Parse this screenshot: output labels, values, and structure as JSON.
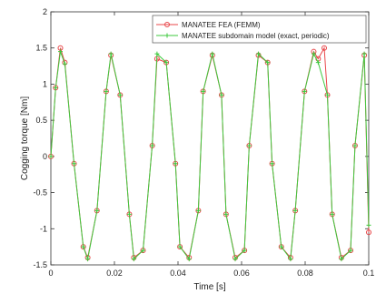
{
  "chart_data": {
    "type": "line",
    "xlabel": "Time [s]",
    "ylabel": "Cogging torque [Nm]",
    "xlim": [
      0,
      0.1
    ],
    "ylim": [
      -1.5,
      2
    ],
    "xticks": [
      "0",
      "0.02",
      "0.04",
      "0.06",
      "0.08",
      "0.1"
    ],
    "yticks": [
      "-1.5",
      "-1",
      "-0.5",
      "0",
      "0.5",
      "1",
      "1.5",
      "2"
    ],
    "grid": false,
    "legend_position": "top-right",
    "series": [
      {
        "name": "MANATEE FEA (FEMM)",
        "color": "#e8474a",
        "marker": "circle",
        "x": [
          0.0,
          0.0015,
          0.003,
          0.0044,
          0.0073,
          0.0102,
          0.0116,
          0.0145,
          0.0174,
          0.0189,
          0.0218,
          0.0247,
          0.0261,
          0.029,
          0.0319,
          0.0334,
          0.0363,
          0.0392,
          0.0406,
          0.0435,
          0.0464,
          0.0479,
          0.0508,
          0.0537,
          0.0551,
          0.058,
          0.0609,
          0.0624,
          0.0653,
          0.0682,
          0.0696,
          0.0725,
          0.0754,
          0.0769,
          0.0798,
          0.0827,
          0.0841,
          0.086,
          0.087,
          0.0885,
          0.0914,
          0.0943,
          0.0957,
          0.0986,
          0.1
        ],
        "y": [
          0.0,
          0.95,
          1.5,
          1.3,
          -0.1,
          -1.25,
          -1.4,
          -0.75,
          0.9,
          1.4,
          0.85,
          -0.8,
          -1.4,
          -1.3,
          0.15,
          1.35,
          1.3,
          -0.1,
          -1.25,
          -1.4,
          -0.75,
          0.9,
          1.4,
          0.85,
          -0.8,
          -1.4,
          -1.3,
          0.15,
          1.4,
          1.3,
          -0.1,
          -1.25,
          -1.4,
          -0.75,
          0.9,
          1.45,
          1.35,
          1.5,
          0.85,
          -0.8,
          -1.4,
          -1.3,
          0.15,
          1.4,
          -1.05
        ]
      },
      {
        "name": "MANATEE subdomain model (exact, periodic)",
        "color": "#3ec93e",
        "marker": "plus",
        "x": [
          0.0,
          0.0015,
          0.003,
          0.0044,
          0.0073,
          0.0102,
          0.0116,
          0.0145,
          0.0174,
          0.0189,
          0.0218,
          0.0247,
          0.0261,
          0.029,
          0.0319,
          0.0334,
          0.0363,
          0.0392,
          0.0406,
          0.0435,
          0.0464,
          0.0479,
          0.0508,
          0.0537,
          0.0551,
          0.058,
          0.0609,
          0.0624,
          0.0653,
          0.0682,
          0.0696,
          0.0725,
          0.0754,
          0.0769,
          0.0798,
          0.0827,
          0.0841,
          0.087,
          0.0885,
          0.0914,
          0.0943,
          0.0957,
          0.0986,
          0.1
        ],
        "y": [
          0.0,
          0.95,
          1.45,
          1.28,
          -0.1,
          -1.25,
          -1.42,
          -0.75,
          0.9,
          1.42,
          0.85,
          -0.8,
          -1.42,
          -1.3,
          0.15,
          1.42,
          1.3,
          -0.1,
          -1.25,
          -1.42,
          -0.75,
          0.9,
          1.42,
          0.85,
          -0.8,
          -1.42,
          -1.3,
          0.15,
          1.42,
          1.3,
          -0.1,
          -1.25,
          -1.42,
          -0.75,
          0.9,
          1.42,
          1.3,
          0.85,
          -0.8,
          -1.42,
          -1.3,
          0.15,
          1.42,
          -0.95
        ]
      }
    ]
  }
}
